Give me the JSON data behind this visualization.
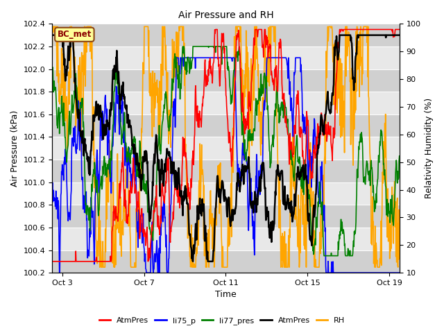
{
  "title": "Air Pressure and RH",
  "xlabel": "Time",
  "ylabel_left": "Air Pressure (kPa)",
  "ylabel_right": "Relativity Humidity (%)",
  "ylim_left": [
    100.2,
    102.4
  ],
  "ylim_right": [
    10,
    100
  ],
  "yticks_left": [
    100.2,
    100.4,
    100.6,
    100.8,
    101.0,
    101.2,
    101.4,
    101.6,
    101.8,
    102.0,
    102.2,
    102.4
  ],
  "yticks_right": [
    10,
    20,
    30,
    40,
    50,
    60,
    70,
    80,
    90,
    100
  ],
  "xtick_labels": [
    "Oct 3",
    "Oct 7",
    "Oct 11",
    "Oct 15",
    "Oct 19"
  ],
  "xlim": [
    0,
    17
  ],
  "xtick_positions": [
    0.5,
    4.5,
    8.5,
    12.5,
    16.5
  ],
  "n_points": 1000,
  "legend_labels": [
    "AtmPres",
    "li75_p",
    "li77_pres",
    "AtmPres",
    "RH"
  ],
  "tag_text": "BC_met",
  "tag_bg": "#FFFF99",
  "tag_border": "#8B4513",
  "background_color": "#ffffff",
  "plot_bg": "#e8e8e8",
  "band_color": "#d0d0d0",
  "line_colors": {
    "AtmPres": "red",
    "li75_p": "blue",
    "li77_pres": "green",
    "AtmPres2": "black",
    "RH": "orange"
  },
  "line_widths": {
    "AtmPres": 1.2,
    "li75_p": 1.2,
    "li77_pres": 1.2,
    "AtmPres2": 1.8,
    "RH": 1.2
  }
}
